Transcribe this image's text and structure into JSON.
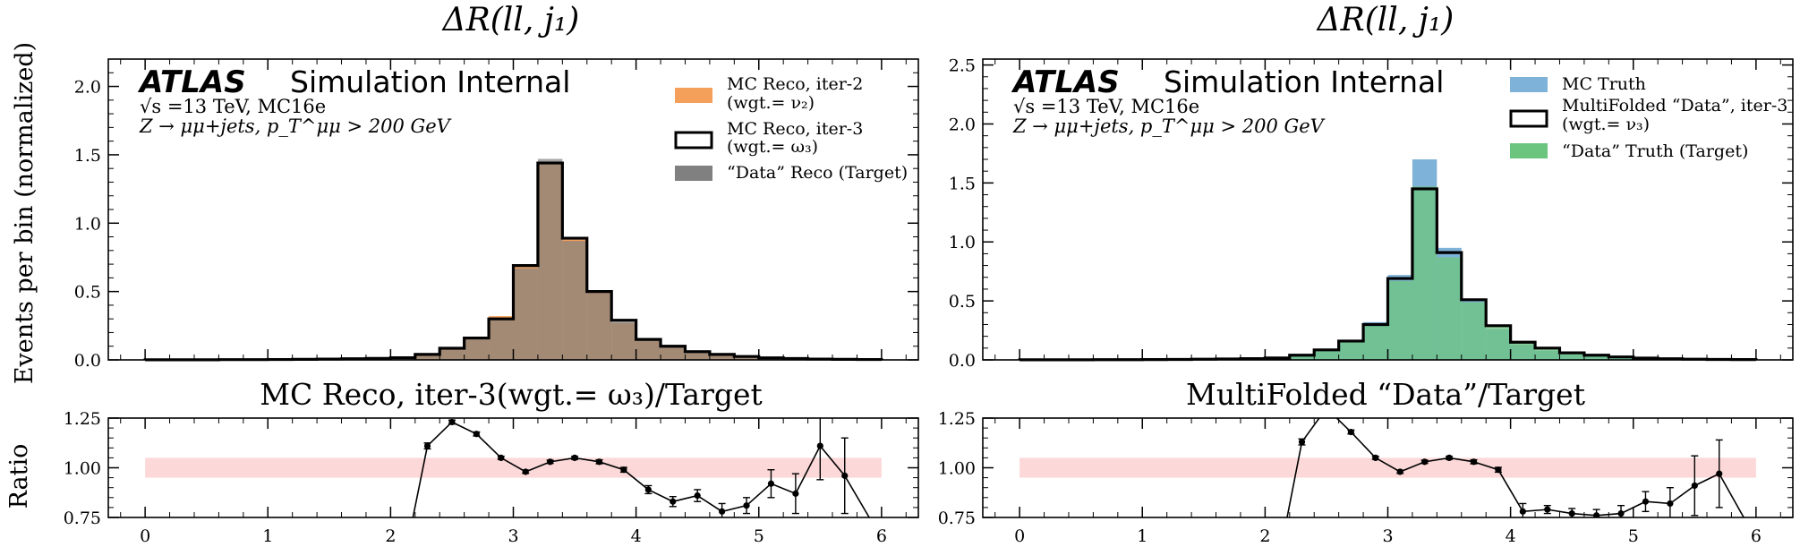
{
  "figure": {
    "ylabel_main": "Events per bin (normalized)",
    "ylabel_ratio": "Ratio"
  },
  "colors": {
    "orange": "#f5a05a",
    "brown": "#80573a",
    "black": "#000000",
    "gray": "#808080",
    "blue": "#7fb2d8",
    "green": "#6cc57f",
    "band": "#fcd8d8"
  },
  "chart_data": [
    {
      "type": "histogram",
      "panel": "left-main",
      "title": "ΔR(ll, j₁)",
      "atlas_label": "ATLAS",
      "atlas_sub": "Simulation Internal",
      "info_line1": "√s =13 TeV, MC16e",
      "info_line2": "Z → μμ+jets, p_T^μμ > 200 GeV",
      "ylabel": "Events per bin (normalized)",
      "xlim": [
        -0.3,
        6.3
      ],
      "ylim": [
        0,
        2.2
      ],
      "yticks": [
        "0.0",
        "0.5",
        "1.0",
        "1.5",
        "2.0"
      ],
      "bin_edges": [
        0,
        0.2,
        0.4,
        0.6,
        0.8,
        1.0,
        1.2,
        1.4,
        1.6,
        1.8,
        2.0,
        2.2,
        2.4,
        2.6,
        2.8,
        3.0,
        3.2,
        3.4,
        3.6,
        3.8,
        4.0,
        4.2,
        4.4,
        4.6,
        4.8,
        5.0,
        5.2,
        5.4,
        5.6,
        5.8,
        6.0
      ],
      "series": [
        {
          "name": "MC Reco, iter-2",
          "name2": "(wgt.= ν₂)",
          "style": "fill",
          "color": "#f5a05a",
          "values": [
            0.001,
            0.001,
            0.001,
            0.002,
            0.002,
            0.003,
            0.004,
            0.006,
            0.008,
            0.011,
            0.016,
            0.033,
            0.075,
            0.17,
            0.32,
            0.68,
            1.43,
            0.88,
            0.5,
            0.27,
            0.14,
            0.089,
            0.05,
            0.035,
            0.022,
            0.013,
            0.008,
            0.005,
            0.003,
            0.002
          ]
        },
        {
          "name": "MC Reco, iter-3",
          "name2": "(wgt.= ω₃)",
          "style": "step",
          "color": "#000000",
          "values": [
            0.001,
            0.001,
            0.001,
            0.002,
            0.002,
            0.003,
            0.004,
            0.006,
            0.008,
            0.011,
            0.016,
            0.04,
            0.085,
            0.16,
            0.3,
            0.69,
            1.44,
            0.89,
            0.5,
            0.29,
            0.15,
            0.1,
            0.06,
            0.04,
            0.025,
            0.015,
            0.01,
            0.006,
            0.004,
            0.003
          ]
        },
        {
          "name": "“Data” Reco (Target)",
          "name2": "",
          "style": "fill",
          "color": "#808080",
          "alpha": 0.7,
          "values": [
            0.001,
            0.001,
            0.001,
            0.002,
            0.002,
            0.003,
            0.004,
            0.006,
            0.008,
            0.011,
            0.016,
            0.033,
            0.075,
            0.17,
            0.3,
            0.67,
            1.47,
            0.87,
            0.49,
            0.28,
            0.15,
            0.1,
            0.07,
            0.044,
            0.032,
            0.02,
            0.011,
            0.007,
            0.004,
            0.003
          ]
        }
      ]
    },
    {
      "type": "histogram",
      "panel": "right-main",
      "title": "ΔR(ll, j₁)",
      "atlas_label": "ATLAS",
      "atlas_sub": "Simulation Internal",
      "info_line1": "√s =13 TeV, MC16e",
      "info_line2": "Z → μμ+jets, p_T^μμ > 200 GeV",
      "xlim": [
        -0.3,
        6.3
      ],
      "ylim": [
        0,
        2.55
      ],
      "yticks": [
        "0.0",
        "0.5",
        "1.0",
        "1.5",
        "2.0",
        "2.5"
      ],
      "bin_edges": [
        0,
        0.2,
        0.4,
        0.6,
        0.8,
        1.0,
        1.2,
        1.4,
        1.6,
        1.8,
        2.0,
        2.2,
        2.4,
        2.6,
        2.8,
        3.0,
        3.2,
        3.4,
        3.6,
        3.8,
        4.0,
        4.2,
        4.4,
        4.6,
        4.8,
        5.0,
        5.2,
        5.4,
        5.6,
        5.8,
        6.0
      ],
      "series": [
        {
          "name": "MC Truth",
          "name2": "",
          "style": "fill",
          "color": "#7fb2d8",
          "values": [
            0.001,
            0.001,
            0.001,
            0.002,
            0.002,
            0.003,
            0.004,
            0.006,
            0.008,
            0.011,
            0.016,
            0.033,
            0.075,
            0.17,
            0.32,
            0.72,
            1.7,
            0.95,
            0.5,
            0.26,
            0.13,
            0.079,
            0.044,
            0.03,
            0.018,
            0.01,
            0.006,
            0.004,
            0.002,
            0.001
          ]
        },
        {
          "name": "MultiFolded “Data”, iter-3",
          "name2": "(wgt.= ν₃)",
          "style": "step",
          "color": "#000000",
          "values": [
            0.001,
            0.001,
            0.001,
            0.002,
            0.002,
            0.003,
            0.004,
            0.006,
            0.008,
            0.011,
            0.016,
            0.04,
            0.085,
            0.16,
            0.3,
            0.69,
            1.45,
            0.91,
            0.51,
            0.29,
            0.15,
            0.1,
            0.06,
            0.04,
            0.025,
            0.015,
            0.01,
            0.006,
            0.004,
            0.003
          ]
        },
        {
          "name": "“Data” Truth (Target)",
          "name2": "",
          "style": "fill",
          "color": "#6cc57f",
          "alpha": 0.75,
          "values": [
            0.001,
            0.001,
            0.001,
            0.002,
            0.002,
            0.003,
            0.004,
            0.006,
            0.008,
            0.011,
            0.016,
            0.033,
            0.075,
            0.17,
            0.3,
            0.67,
            1.47,
            0.87,
            0.49,
            0.28,
            0.15,
            0.1,
            0.07,
            0.044,
            0.032,
            0.02,
            0.011,
            0.007,
            0.004,
            0.003
          ]
        }
      ]
    },
    {
      "type": "line",
      "panel": "left-ratio",
      "title": "MC Reco, iter-3(wgt.= ω₃)/Target",
      "ylabel": "Ratio",
      "xlim": [
        -0.3,
        6.3
      ],
      "ylim": [
        0.75,
        1.25
      ],
      "xticks": [
        "0",
        "1",
        "2",
        "3",
        "4",
        "5",
        "6"
      ],
      "yticks": [
        "0.75",
        "1.00",
        "1.25"
      ],
      "band": [
        0.95,
        1.05
      ],
      "x": [
        2.1,
        2.3,
        2.5,
        2.7,
        2.9,
        3.1,
        3.3,
        3.5,
        3.7,
        3.9,
        4.1,
        4.3,
        4.5,
        4.7,
        4.9,
        5.1,
        5.3,
        5.5,
        5.7,
        5.9
      ],
      "values": [
        0.5,
        1.11,
        1.23,
        1.17,
        1.05,
        0.98,
        1.03,
        1.05,
        1.03,
        0.99,
        0.89,
        0.83,
        0.86,
        0.78,
        0.81,
        0.92,
        0.87,
        1.11,
        0.96,
        0.75
      ],
      "errors": [
        0.0,
        0.015,
        0.01,
        0.01,
        0.008,
        0.008,
        0.008,
        0.008,
        0.01,
        0.012,
        0.02,
        0.025,
        0.03,
        0.04,
        0.04,
        0.07,
        0.1,
        0.17,
        0.19,
        0.0
      ]
    },
    {
      "type": "line",
      "panel": "right-ratio",
      "title": "MultiFolded “Data”/Target",
      "xlim": [
        -0.3,
        6.3
      ],
      "ylim": [
        0.75,
        1.25
      ],
      "xticks": [
        "0",
        "1",
        "2",
        "3",
        "4",
        "5",
        "6"
      ],
      "yticks": [
        "0.75",
        "1.00",
        "1.25"
      ],
      "band": [
        0.95,
        1.05
      ],
      "x": [
        2.1,
        2.3,
        2.5,
        2.7,
        2.9,
        3.1,
        3.3,
        3.5,
        3.7,
        3.9,
        4.1,
        4.3,
        4.5,
        4.7,
        4.9,
        5.1,
        5.3,
        5.5,
        5.7,
        5.9
      ],
      "values": [
        0.5,
        1.13,
        1.3,
        1.18,
        1.05,
        0.98,
        1.03,
        1.05,
        1.03,
        0.99,
        0.78,
        0.79,
        0.77,
        0.76,
        0.77,
        0.83,
        0.82,
        0.91,
        0.97,
        0.75
      ],
      "errors": [
        0.0,
        0.015,
        0.01,
        0.01,
        0.008,
        0.008,
        0.008,
        0.008,
        0.01,
        0.012,
        0.04,
        0.02,
        0.025,
        0.03,
        0.04,
        0.05,
        0.08,
        0.15,
        0.17,
        0.0
      ]
    }
  ]
}
